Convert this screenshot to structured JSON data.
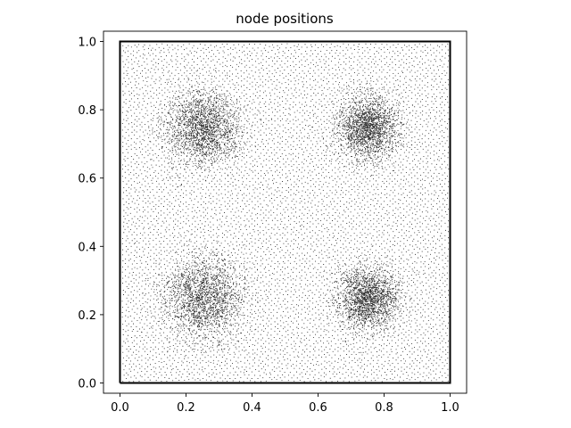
{
  "chart_data": {
    "type": "scatter",
    "title": "node positions",
    "xlabel": "",
    "ylabel": "",
    "xlim": [
      -0.05,
      1.05
    ],
    "ylim": [
      -0.03,
      1.03
    ],
    "xticks": [
      0.0,
      0.2,
      0.4,
      0.6,
      0.8,
      1.0
    ],
    "xtick_labels": [
      "0.0",
      "0.2",
      "0.4",
      "0.6",
      "0.8",
      "1.0"
    ],
    "yticks": [
      0.0,
      0.2,
      0.4,
      0.6,
      0.8,
      1.0
    ],
    "ytick_labels": [
      "0.0",
      "0.2",
      "0.4",
      "0.6",
      "0.8",
      "1.0"
    ],
    "grid": false,
    "aspect": "equal",
    "boundary": [
      [
        0,
        0
      ],
      [
        1,
        0
      ],
      [
        1,
        1
      ],
      [
        0,
        1
      ],
      [
        0,
        0
      ]
    ],
    "point_color": "#000000",
    "density_clusters": [
      {
        "center": [
          0.25,
          0.75
        ],
        "spread": 0.09
      },
      {
        "center": [
          0.75,
          0.75
        ],
        "spread": 0.075
      },
      {
        "center": [
          0.25,
          0.25
        ],
        "spread": 0.1
      },
      {
        "center": [
          0.75,
          0.25
        ],
        "spread": 0.075
      }
    ],
    "background_points_per_axis": 120,
    "cluster_points_each": 1800
  }
}
